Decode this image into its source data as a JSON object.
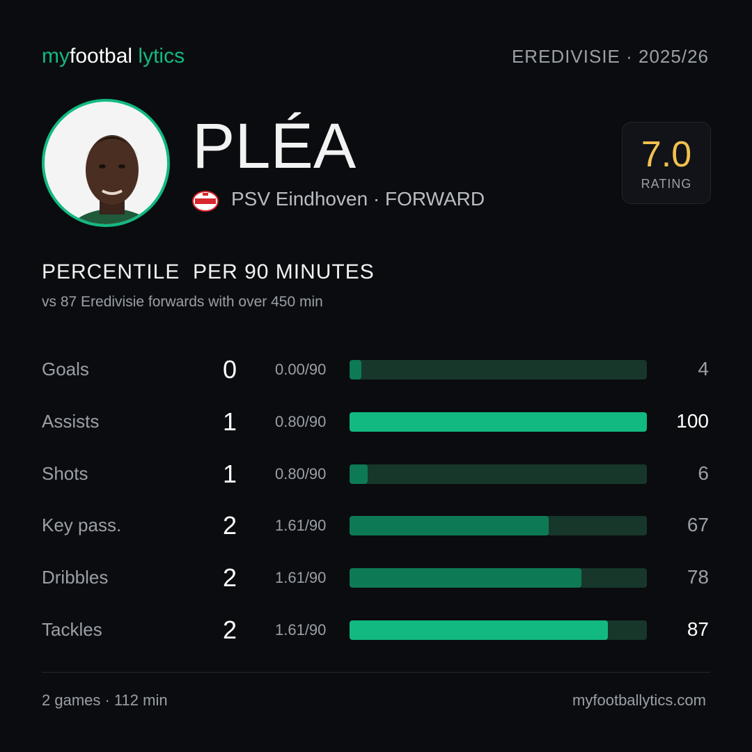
{
  "header": {
    "brand": [
      "my",
      "footbal",
      "lytics"
    ],
    "league": "EREDIVISIE · 2025/26"
  },
  "player": {
    "name": "PLÉA",
    "club_line": "PSV Eindhoven · FORWARD"
  },
  "rating": {
    "value": "7.0",
    "label": "RATING"
  },
  "section": {
    "title": "PERCENTILE  PER 90 MINUTES",
    "subtitle": "vs 87 Eredivisie forwards with over 450 min"
  },
  "stats": {
    "xlim": [
      0,
      100
    ],
    "track_color": "#17372b",
    "rows": [
      {
        "label": "Goals",
        "total": 0,
        "per90": "0.00/90",
        "percentile": 4,
        "color": "#0d7a55",
        "text_color": "#9aa0a8"
      },
      {
        "label": "Assists",
        "total": 1,
        "per90": "0.80/90",
        "percentile": 100,
        "color": "#12b981",
        "text_color": "#ffffff"
      },
      {
        "label": "Shots",
        "total": 1,
        "per90": "0.80/90",
        "percentile": 6,
        "color": "#0d7a55",
        "text_color": "#9aa0a8"
      },
      {
        "label": "Key pass.",
        "total": 2,
        "per90": "1.61/90",
        "percentile": 67,
        "color": "#0d7a55",
        "text_color": "#9aa0a8"
      },
      {
        "label": "Dribbles",
        "total": 2,
        "per90": "1.61/90",
        "percentile": 78,
        "color": "#0d7a55",
        "text_color": "#9aa0a8"
      },
      {
        "label": "Tackles",
        "total": 2,
        "per90": "1.61/90",
        "percentile": 87,
        "color": "#12b981",
        "text_color": "#ffffff"
      }
    ]
  },
  "footer": {
    "left": "2 games · 112 min",
    "right": "myfootballytics.com"
  }
}
